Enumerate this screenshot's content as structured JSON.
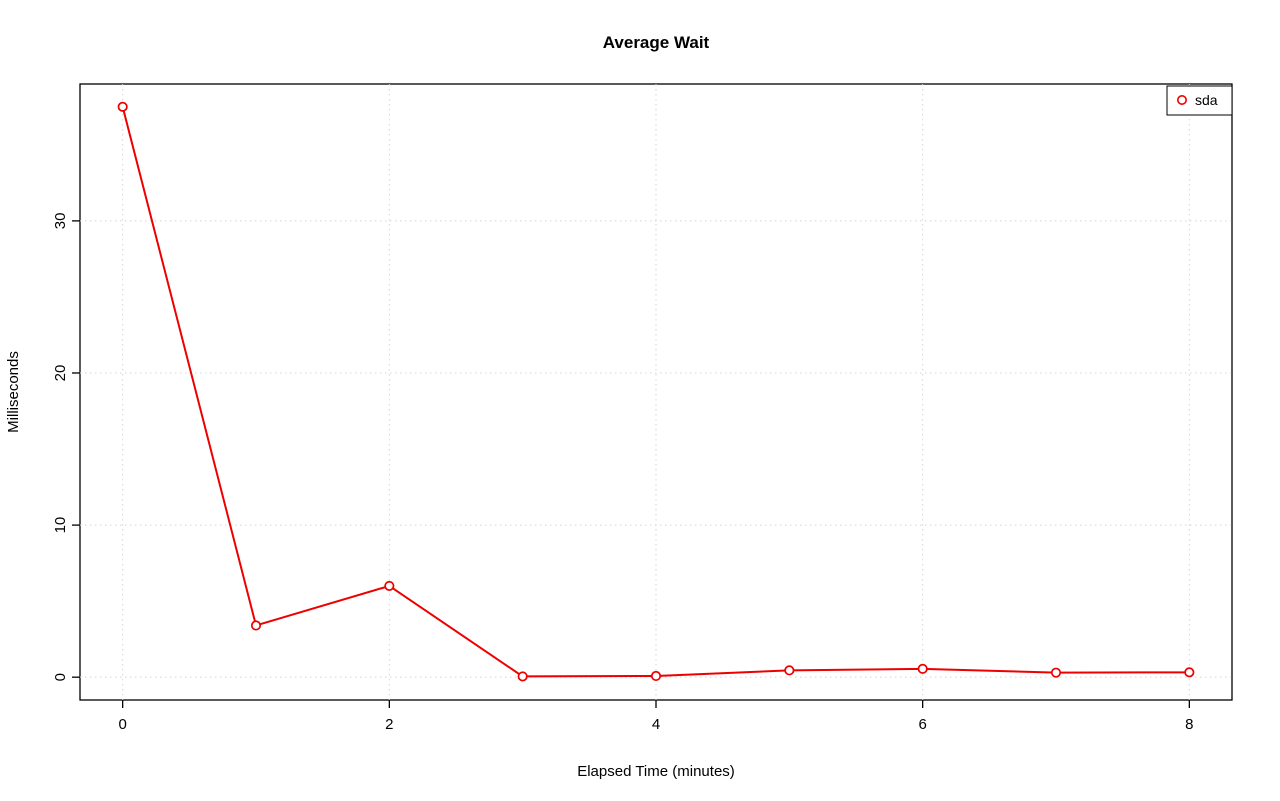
{
  "chart_data": {
    "type": "line",
    "title": "Average Wait",
    "xlabel": "Elapsed Time (minutes)",
    "ylabel": "Milliseconds",
    "x": [
      0,
      1,
      2,
      3,
      4,
      5,
      6,
      7,
      8
    ],
    "series": [
      {
        "name": "sda",
        "color": "#ee0000",
        "marker": "open-circle",
        "values": [
          37.5,
          3.4,
          6.0,
          0.05,
          0.08,
          0.45,
          0.55,
          0.3,
          0.32
        ]
      }
    ],
    "xticks": [
      0,
      2,
      4,
      6,
      8
    ],
    "yticks": [
      0,
      10,
      20,
      30
    ],
    "xlim": [
      -0.32,
      8.32
    ],
    "ylim": [
      -1.5,
      39.0
    ],
    "grid": true,
    "grid_color": "#d4d4d4",
    "axis_color": "#000000",
    "background": "#ffffff",
    "legend_position": "top-right"
  }
}
